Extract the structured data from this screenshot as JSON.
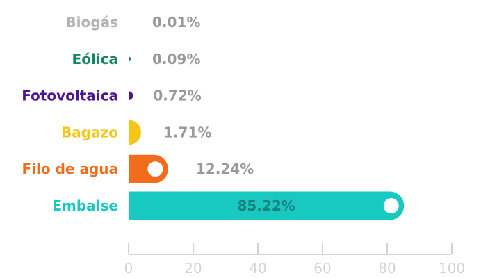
{
  "chart_data": {
    "type": "bar",
    "orientation": "horizontal",
    "categories": [
      "Biogás",
      "Eólica",
      "Fotovoltaica",
      "Bagazo",
      "Filo de agua",
      "Embalse"
    ],
    "values": [
      0.01,
      0.09,
      0.72,
      1.71,
      12.24,
      85.22
    ],
    "value_labels": [
      "0.01%",
      "0.09%",
      "0.72%",
      "1.71%",
      "12.24%",
      "85.22%"
    ],
    "colors": [
      "#b3b3b3",
      "#138a5c",
      "#4a1598",
      "#f5c518",
      "#f26d1b",
      "#17c9c0"
    ],
    "xlim": [
      0,
      100
    ],
    "xticks": [
      0,
      20,
      40,
      60,
      80,
      100
    ],
    "xtick_labels": [
      "0",
      "20",
      "40",
      "60",
      "80",
      "100"
    ],
    "title": "",
    "xlabel": "",
    "ylabel": "",
    "grid": false,
    "legend": "none"
  }
}
